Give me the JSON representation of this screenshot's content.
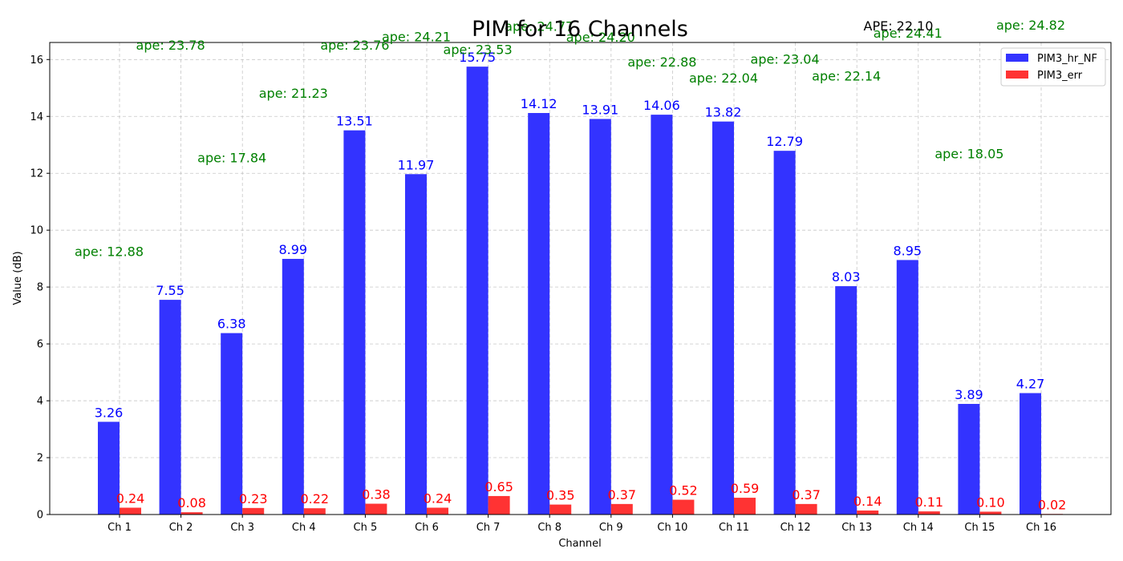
{
  "chart_data": {
    "type": "bar",
    "title": "PIM for 16 Channels",
    "xlabel": "Channel",
    "ylabel": "Value (dB)",
    "ylim": [
      0,
      16.6
    ],
    "yticks": [
      "0",
      "2",
      "4",
      "6",
      "8",
      "10",
      "12",
      "14",
      "16"
    ],
    "grid": true,
    "legend_position": "top-right",
    "categories": [
      "Ch 1",
      "Ch 2",
      "Ch 3",
      "Ch 4",
      "Ch 5",
      "Ch 6",
      "Ch 7",
      "Ch 8",
      "Ch 9",
      "Ch 10",
      "Ch 11",
      "Ch 12",
      "Ch 13",
      "Ch 14",
      "Ch 15",
      "Ch 16"
    ],
    "series": [
      {
        "name": "PIM3_hr_NF",
        "color": "#3333ff",
        "label_color": "#0000ff",
        "values": [
          3.26,
          7.55,
          6.38,
          8.99,
          13.51,
          11.97,
          15.75,
          14.12,
          13.91,
          14.06,
          13.82,
          12.79,
          8.03,
          8.95,
          3.89,
          4.27
        ],
        "labels": [
          "3.26",
          "7.55",
          "6.38",
          "8.99",
          "13.51",
          "11.97",
          "15.75",
          "14.12",
          "13.91",
          "14.06",
          "13.82",
          "12.79",
          "8.03",
          "8.95",
          "3.89",
          "4.27"
        ]
      },
      {
        "name": "PIM3_err",
        "color": "#ff3333",
        "label_color": "#ff0000",
        "values": [
          0.24,
          0.08,
          0.23,
          0.22,
          0.38,
          0.24,
          0.65,
          0.35,
          0.37,
          0.52,
          0.59,
          0.37,
          0.14,
          0.11,
          0.1,
          0.02
        ],
        "labels": [
          "0.24",
          "0.08",
          "0.23",
          "0.22",
          "0.38",
          "0.24",
          "0.65",
          "0.35",
          "0.37",
          "0.52",
          "0.59",
          "0.37",
          "0.14",
          "0.11",
          "0.10",
          "0.02"
        ]
      }
    ],
    "ape": {
      "color": "#008000",
      "values": [
        12.88,
        23.78,
        17.84,
        21.23,
        23.76,
        24.21,
        23.53,
        24.77,
        24.2,
        22.88,
        22.04,
        23.04,
        22.14,
        24.41,
        18.05,
        24.82
      ],
      "labels": [
        "ape: 12.88",
        "ape: 23.78",
        "ape: 17.84",
        "ape: 21.23",
        "ape: 23.76",
        "ape: 24.21",
        "ape: 23.53",
        "ape: 24.77",
        "ape: 24.20",
        "ape: 22.88",
        "ape: 22.04",
        "ape: 23.04",
        "ape: 22.14",
        "ape: 24.41",
        "ape: 18.05",
        "ape: 24.82"
      ]
    },
    "overall_ape_label": "APE: 22.10"
  }
}
